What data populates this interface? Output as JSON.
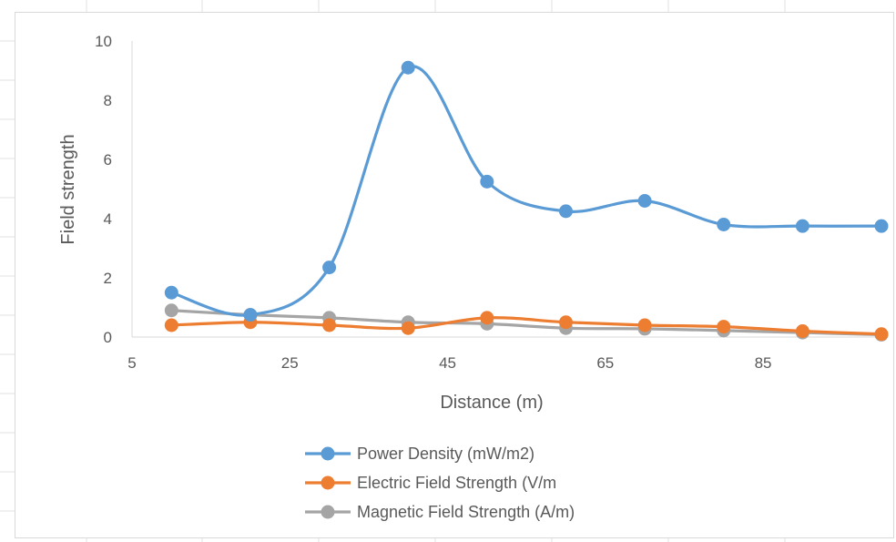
{
  "chart_data": {
    "type": "line",
    "smooth": true,
    "title": "",
    "xlabel": "Distance (m)",
    "ylabel": "Field strength",
    "xlim": [
      5,
      100
    ],
    "ylim": [
      0,
      10
    ],
    "xticks": [
      5,
      25,
      45,
      65,
      85
    ],
    "yticks": [
      0,
      2,
      4,
      6,
      8,
      10
    ],
    "grid": false,
    "legend_position": "bottom",
    "x": [
      10,
      20,
      30,
      40,
      50,
      60,
      70,
      80,
      90,
      100
    ],
    "series": [
      {
        "name": "Power Density (mW/m2)",
        "color": "#5b9bd5",
        "values": [
          1.5,
          0.75,
          2.35,
          9.1,
          5.25,
          4.25,
          4.6,
          3.8,
          3.75,
          3.75
        ]
      },
      {
        "name": "Electric Field Strength (V/m",
        "color": "#ed7d31",
        "values": [
          0.4,
          0.5,
          0.4,
          0.3,
          0.65,
          0.5,
          0.4,
          0.35,
          0.2,
          0.1
        ]
      },
      {
        "name": "Magnetic Field Strength (A/m)",
        "color": "#a5a5a5",
        "values": [
          0.9,
          0.75,
          0.65,
          0.5,
          0.45,
          0.3,
          0.28,
          0.22,
          0.15,
          0.08
        ]
      }
    ]
  }
}
